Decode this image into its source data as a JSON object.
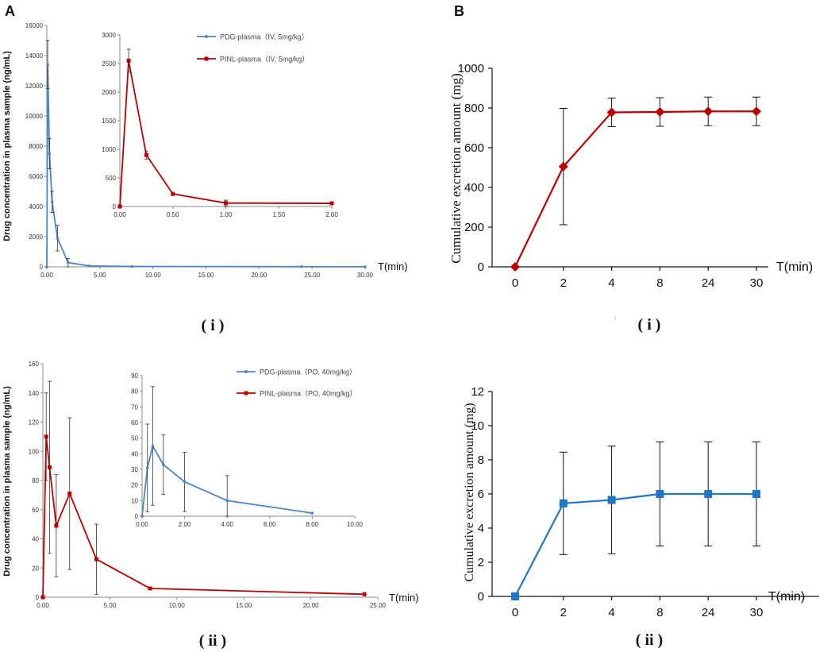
{
  "panel_labels": {
    "a": "A",
    "b": "B"
  },
  "captions": {
    "a_i": "( i )",
    "a_ii": "( ii )",
    "b_i": "( i )",
    "b_ii": "( ii )",
    "b_i_mark": "·)"
  },
  "colors": {
    "blue": "#4a86c8",
    "red": "#c00000",
    "blueB": "#1f77c9"
  },
  "chart_data": [
    {
      "id": "A-i",
      "type": "line",
      "title": "",
      "xlabel": "T(min)",
      "ylabel": "Drug concentration in plasma sample (ng/mL)",
      "xlim": [
        0,
        30
      ],
      "ylim": [
        0,
        16000
      ],
      "xticks": [
        "0.00",
        "5.00",
        "10.00",
        "15.00",
        "20.00",
        "25.00",
        "30.00"
      ],
      "yticks": [
        "0",
        "2000",
        "4000",
        "6000",
        "8000",
        "10000",
        "12000",
        "14000",
        "16000"
      ],
      "series": [
        {
          "name": "PDG-plasma（IV, 5mg/kg）",
          "color": "#4a86c8",
          "x": [
            0,
            0.083,
            0.25,
            0.5,
            1,
            2,
            4,
            8,
            24,
            30
          ],
          "y": [
            0,
            13400,
            7500,
            4300,
            1900,
            280,
            60,
            25,
            10,
            5
          ],
          "err": [
            0,
            1600,
            1000,
            700,
            850,
            280,
            0,
            0,
            0,
            0
          ]
        }
      ],
      "inset": {
        "xlim": [
          0,
          2
        ],
        "ylim": [
          0,
          3000
        ],
        "xticks": [
          "0.00",
          "0.50",
          "1.00",
          "1.50",
          "2.00"
        ],
        "yticks": [
          "0",
          "500",
          "1000",
          "1500",
          "2000",
          "2500",
          "3000"
        ],
        "series": [
          {
            "name": "PINL-plasma（IV, 5mg/kg）",
            "color": "#c00000",
            "x": [
              0,
              0.083,
              0.25,
              0.5,
              1,
              2
            ],
            "y": [
              0,
              2550,
              900,
              220,
              60,
              55
            ],
            "err": [
              0,
              200,
              70,
              0,
              50,
              0
            ]
          }
        ]
      }
    },
    {
      "id": "A-ii",
      "type": "line",
      "title": "",
      "xlabel": "T(min)",
      "ylabel": "Drug concentration in plasma sample (ng/mL)",
      "xlim": [
        0,
        25
      ],
      "ylim": [
        0,
        160
      ],
      "xticks": [
        "0.00",
        "5.00",
        "10.00",
        "15.00",
        "20.00",
        "25.00"
      ],
      "yticks": [
        "0",
        "20",
        "40",
        "60",
        "80",
        "100",
        "120",
        "140",
        "160"
      ],
      "series": [
        {
          "name": "PINL-plasma（PO, 40mg/kg）",
          "color": "#c00000",
          "x": [
            0,
            0.25,
            0.5,
            1,
            2,
            4,
            8,
            24
          ],
          "y": [
            0,
            110,
            89,
            49,
            71,
            26,
            6,
            2
          ],
          "err": [
            0,
            30,
            59,
            35,
            52,
            24,
            0,
            0
          ]
        }
      ],
      "inset": {
        "xlim": [
          0,
          10
        ],
        "ylim": [
          0,
          90
        ],
        "xticks": [
          "0.00",
          "2.00",
          "4.00",
          "6.00",
          "8.00",
          "10.00"
        ],
        "yticks": [
          "0",
          "10",
          "20",
          "30",
          "40",
          "50",
          "60",
          "70",
          "80",
          "90"
        ],
        "series": [
          {
            "name": "PDG-plasma（PO, 40mg/kg）",
            "color": "#4a86c8",
            "x": [
              0,
              0.25,
              0.5,
              1,
              2,
              4,
              8
            ],
            "y": [
              0,
              31,
              45,
              33,
              22,
              10,
              2
            ],
            "err": [
              0,
              28,
              38,
              19,
              19,
              16,
              0
            ]
          }
        ]
      }
    },
    {
      "id": "B-i",
      "type": "line",
      "title": "",
      "xlabel": "T(min)",
      "ylabel": "Cumulative excretion amount (mg)",
      "categories": [
        "0",
        "2",
        "4",
        "8",
        "24",
        "30"
      ],
      "ylim": [
        0,
        1000
      ],
      "yticks": [
        "0",
        "200",
        "400",
        "600",
        "800",
        "1000"
      ],
      "series": [
        {
          "name": "",
          "color": "#c00000",
          "marker": "diamond",
          "values": [
            0,
            505,
            778,
            780,
            783,
            783
          ],
          "err": [
            0,
            293,
            72,
            72,
            72,
            72
          ]
        }
      ]
    },
    {
      "id": "B-ii",
      "type": "line",
      "title": "",
      "xlabel": "T(min)",
      "ylabel": "Cumulative excretion amount (mg)",
      "categories": [
        "0",
        "2",
        "4",
        "8",
        "24",
        "30"
      ],
      "ylim": [
        0,
        12
      ],
      "yticks": [
        "0",
        "2",
        "4",
        "6",
        "8",
        "10",
        "12"
      ],
      "series": [
        {
          "name": "",
          "color": "#1f77c9",
          "marker": "square",
          "values": [
            0,
            5.45,
            5.65,
            6.0,
            6.0,
            6.0
          ],
          "err": [
            0,
            3.0,
            3.15,
            3.05,
            3.05,
            3.05
          ]
        }
      ]
    }
  ]
}
